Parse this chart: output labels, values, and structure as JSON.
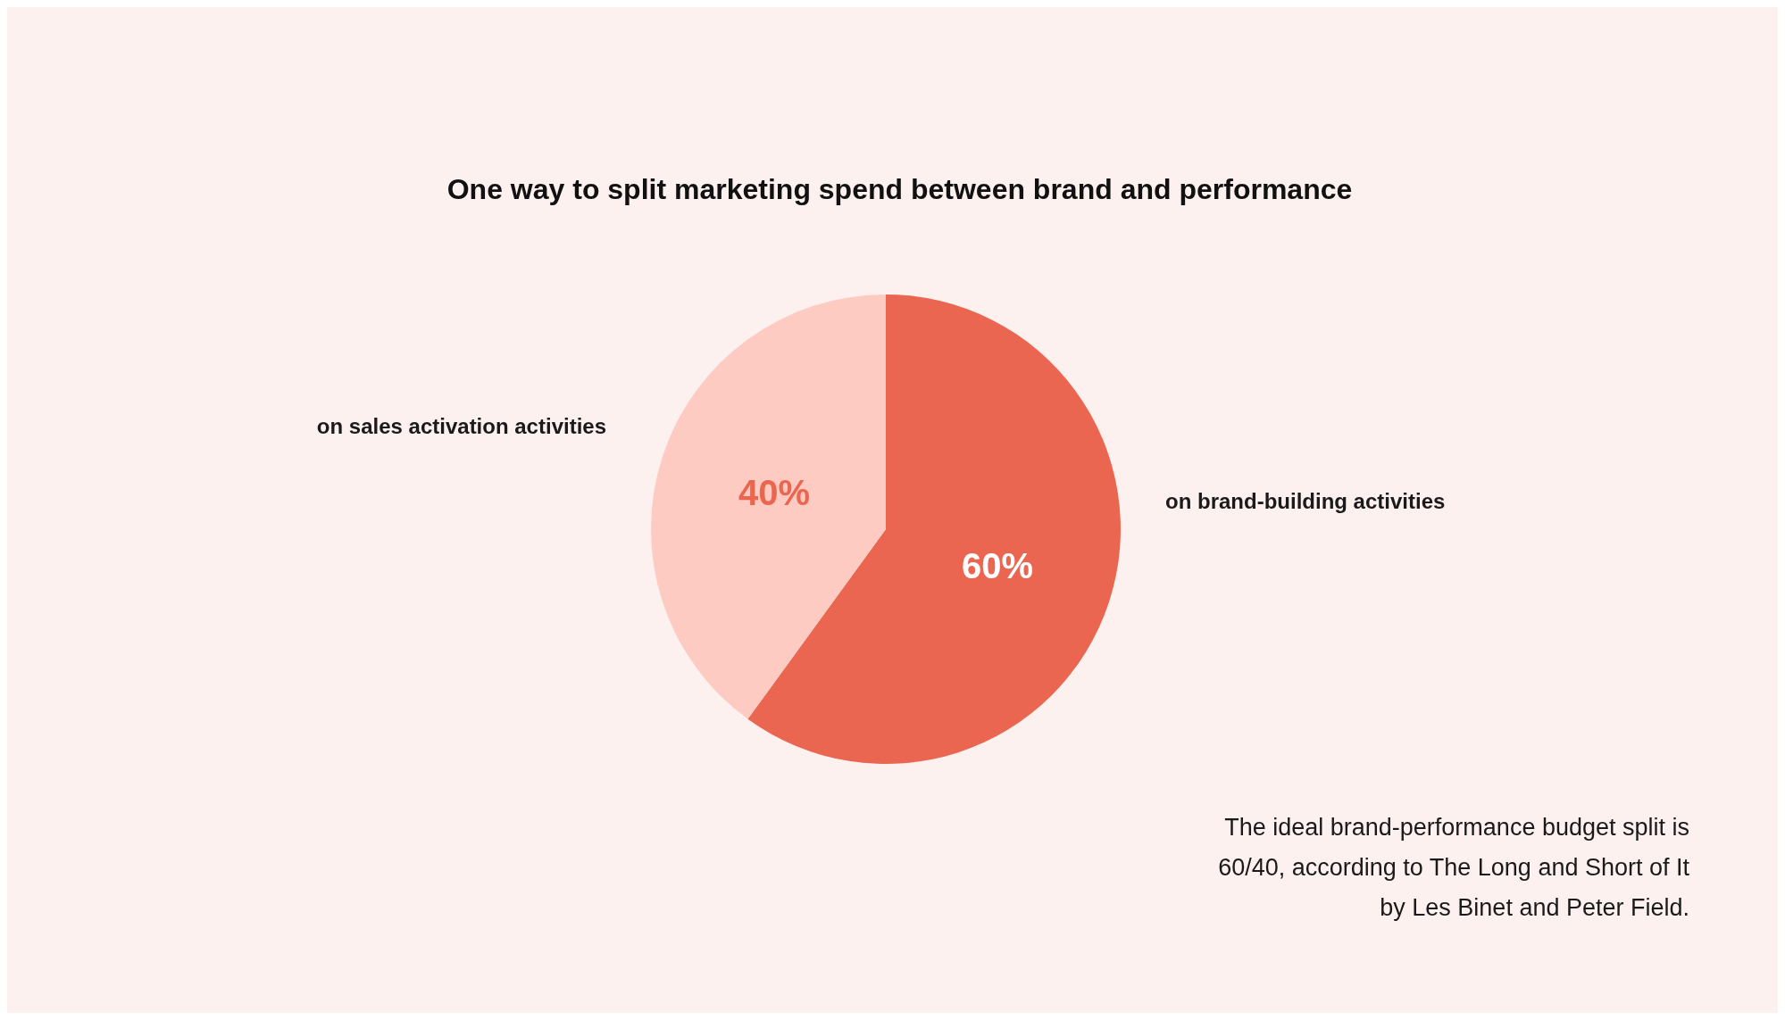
{
  "chart_data": {
    "type": "pie",
    "title": "One way to split marketing spend between brand and performance",
    "categories": [
      "on brand-building activities",
      "on sales activation activities"
    ],
    "values": [
      60,
      40
    ],
    "colors": [
      "#ea6650",
      "#fecbc2"
    ],
    "value_labels": [
      "60%",
      "40%"
    ],
    "annotations": [
      "The ideal brand-performance budget split is\n60/40, according to The Long and Short of It\nby Les Binet and Peter Field."
    ]
  }
}
